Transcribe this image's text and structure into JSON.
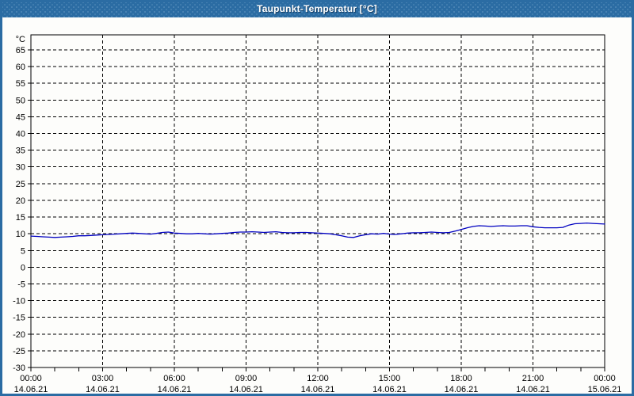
{
  "window": {
    "title": "Taupunkt-Temperatur [°C]",
    "title_bar_color": "#2b6ca3",
    "frame_color": "#2b6ca3",
    "background_color": "#fdfdfb"
  },
  "chart_data": {
    "type": "line",
    "title": "Taupunkt-Temperatur [°C]",
    "unit_label": "°C",
    "xlabel": "",
    "ylabel": "°C",
    "ylim": [
      -30,
      69.5
    ],
    "xlim_hours": [
      0,
      24
    ],
    "grid": "dashed",
    "legend": "none",
    "grid_color": "#000000",
    "axis_color": "#000000",
    "tick_label_color": "#000000",
    "line_color": "#0000c0",
    "y_ticks": [
      65,
      60,
      55,
      50,
      45,
      40,
      35,
      30,
      25,
      20,
      15,
      10,
      5,
      0,
      -5,
      -10,
      -15,
      -20,
      -25,
      -30
    ],
    "x_ticks": [
      {
        "hour": 0,
        "time": "00:00",
        "date": "14.06.21"
      },
      {
        "hour": 3,
        "time": "03:00",
        "date": "14.06.21"
      },
      {
        "hour": 6,
        "time": "06:00",
        "date": "14.06.21"
      },
      {
        "hour": 9,
        "time": "09:00",
        "date": "14.06.21"
      },
      {
        "hour": 12,
        "time": "12:00",
        "date": "14.06.21"
      },
      {
        "hour": 15,
        "time": "15:00",
        "date": "14.06.21"
      },
      {
        "hour": 18,
        "time": "18:00",
        "date": "14.06.21"
      },
      {
        "hour": 21,
        "time": "21:00",
        "date": "14.06.21"
      },
      {
        "hour": 24,
        "time": "00:00",
        "date": "15.06.21"
      }
    ],
    "x_minor_tick_step_hours": 1,
    "series": [
      {
        "name": "Taupunkt-Temperatur",
        "x_start_hour": 0,
        "x_step_hours": 0.25,
        "values": [
          9.3,
          9.2,
          9.1,
          9.0,
          8.9,
          9.0,
          9.1,
          9.2,
          9.4,
          9.4,
          9.5,
          9.6,
          9.7,
          9.8,
          9.9,
          10.0,
          10.1,
          10.2,
          10.1,
          10.0,
          9.9,
          10.1,
          10.4,
          10.5,
          10.2,
          10.1,
          10.0,
          10.0,
          10.1,
          10.0,
          9.9,
          10.0,
          10.1,
          10.2,
          10.4,
          10.5,
          10.5,
          10.6,
          10.5,
          10.4,
          10.5,
          10.6,
          10.4,
          10.3,
          10.3,
          10.4,
          10.4,
          10.3,
          10.2,
          10.1,
          10.0,
          9.7,
          9.4,
          9.0,
          8.9,
          9.4,
          9.7,
          10.0,
          9.9,
          10.1,
          9.9,
          9.8,
          10.0,
          10.2,
          10.3,
          10.3,
          10.4,
          10.5,
          10.4,
          10.3,
          10.4,
          10.8,
          11.3,
          11.8,
          12.2,
          12.4,
          12.3,
          12.2,
          12.3,
          12.4,
          12.3,
          12.3,
          12.4,
          12.4,
          12.1,
          11.9,
          11.8,
          11.8,
          11.8,
          11.9,
          12.6,
          13.0,
          13.1,
          13.2,
          13.1,
          13.0,
          12.9
        ]
      }
    ]
  }
}
